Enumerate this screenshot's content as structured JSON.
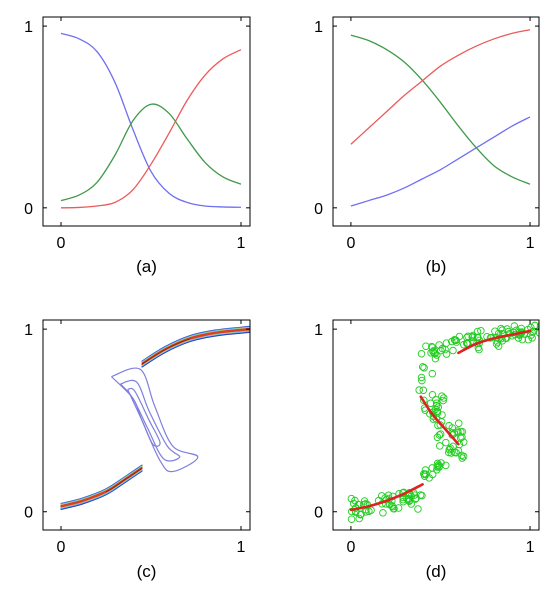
{
  "chart_data": [
    {
      "panel": "(a)",
      "type": "line",
      "xlim": [
        -0.1,
        1.05
      ],
      "ylim": [
        -0.1,
        1.05
      ],
      "xticks": [
        "0",
        "1"
      ],
      "yticks": [
        "0",
        "1"
      ],
      "caption": "(a)",
      "series": [
        {
          "color": "#6f6ff2",
          "x": [
            0,
            0.1,
            0.2,
            0.3,
            0.4,
            0.5,
            0.6,
            0.7,
            0.8,
            0.9,
            1
          ],
          "y": [
            0.96,
            0.93,
            0.86,
            0.69,
            0.43,
            0.2,
            0.08,
            0.03,
            0.01,
            0.005,
            0.003
          ]
        },
        {
          "color": "#3f9a4a",
          "x": [
            0,
            0.1,
            0.2,
            0.3,
            0.4,
            0.5,
            0.6,
            0.7,
            0.8,
            0.9,
            1
          ],
          "y": [
            0.04,
            0.07,
            0.14,
            0.29,
            0.48,
            0.57,
            0.52,
            0.38,
            0.25,
            0.17,
            0.13
          ]
        },
        {
          "color": "#ec5a5a",
          "x": [
            0,
            0.1,
            0.2,
            0.3,
            0.4,
            0.5,
            0.6,
            0.7,
            0.8,
            0.9,
            1
          ],
          "y": [
            0.0,
            0.002,
            0.01,
            0.03,
            0.1,
            0.24,
            0.41,
            0.59,
            0.73,
            0.82,
            0.87
          ]
        }
      ]
    },
    {
      "panel": "(b)",
      "type": "line",
      "xlim": [
        -0.1,
        1.05
      ],
      "ylim": [
        -0.1,
        1.05
      ],
      "xticks": [
        "0",
        "1"
      ],
      "yticks": [
        "0",
        "1"
      ],
      "caption": "(b)",
      "series": [
        {
          "color": "#6f6ff2",
          "x": [
            0,
            0.1,
            0.2,
            0.3,
            0.4,
            0.5,
            0.6,
            0.7,
            0.8,
            0.9,
            1
          ],
          "y": [
            0.01,
            0.04,
            0.07,
            0.11,
            0.16,
            0.21,
            0.27,
            0.33,
            0.39,
            0.45,
            0.5
          ]
        },
        {
          "color": "#3f9a4a",
          "x": [
            0,
            0.1,
            0.2,
            0.3,
            0.4,
            0.5,
            0.6,
            0.7,
            0.8,
            0.9,
            1
          ],
          "y": [
            0.95,
            0.92,
            0.87,
            0.8,
            0.7,
            0.58,
            0.45,
            0.33,
            0.23,
            0.17,
            0.13
          ]
        },
        {
          "color": "#ec5a5a",
          "x": [
            0,
            0.1,
            0.2,
            0.3,
            0.4,
            0.5,
            0.6,
            0.7,
            0.8,
            0.9,
            1
          ],
          "y": [
            0.35,
            0.44,
            0.53,
            0.62,
            0.7,
            0.78,
            0.84,
            0.89,
            0.93,
            0.96,
            0.98
          ]
        }
      ]
    },
    {
      "panel": "(c)",
      "type": "contour",
      "xlim": [
        -0.1,
        1.05
      ],
      "ylim": [
        -0.1,
        1.05
      ],
      "xticks": [
        "0",
        "1"
      ],
      "yticks": [
        "0",
        "1"
      ],
      "caption": "(c)",
      "palette": [
        "#1f2bb4",
        "#2f4fd0",
        "#3b78e6",
        "#4fb0f0",
        "#7ad7ec",
        "#c8d66a",
        "#e79a3c",
        "#d6402a",
        "#8a1e14"
      ],
      "middle_contour_color": "#7f7fe0"
    },
    {
      "panel": "(d)",
      "type": "scatter",
      "xlim": [
        -0.1,
        1.05
      ],
      "ylim": [
        -0.1,
        1.05
      ],
      "xticks": [
        "0",
        "1"
      ],
      "yticks": [
        "0",
        "1"
      ],
      "caption": "(d)",
      "point_color": "#22cc22",
      "line_color": "#dd2222",
      "segments": [
        {
          "x": [
            0.0,
            0.1,
            0.2,
            0.3,
            0.4
          ],
          "y": [
            0.01,
            0.03,
            0.06,
            0.1,
            0.15
          ]
        },
        {
          "x": [
            0.39,
            0.45,
            0.52,
            0.6
          ],
          "y": [
            0.63,
            0.54,
            0.46,
            0.37
          ]
        },
        {
          "x": [
            0.6,
            0.7,
            0.8,
            0.9,
            1.0
          ],
          "y": [
            0.87,
            0.92,
            0.95,
            0.97,
            0.99
          ]
        }
      ]
    }
  ]
}
